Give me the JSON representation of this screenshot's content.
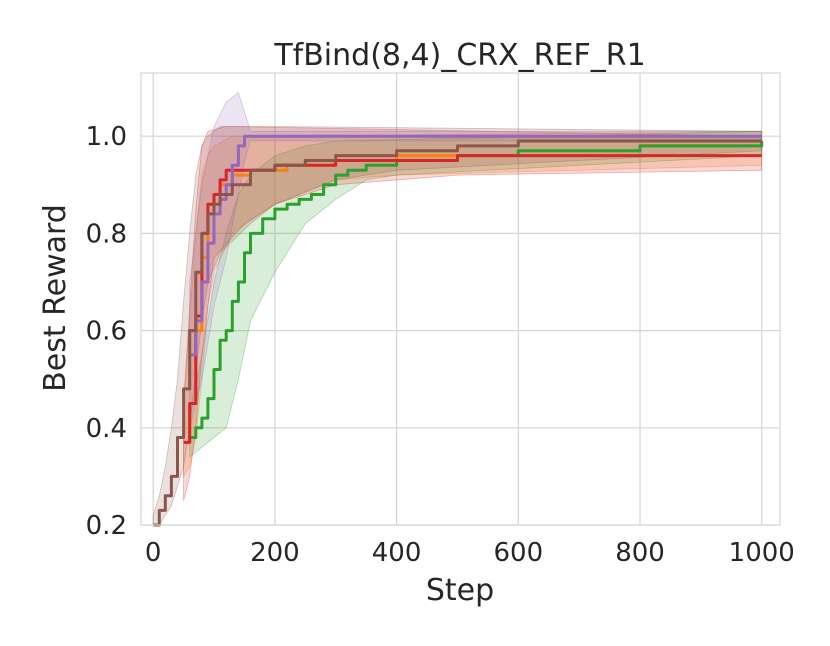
{
  "chart_data": {
    "type": "line",
    "title": "TfBind(8,4)_CRX_REF_R1",
    "xlabel": "Step",
    "ylabel": "Best Reward",
    "xlim": [
      -20,
      1030
    ],
    "ylim": [
      0.2,
      1.13
    ],
    "xticks": [
      0,
      200,
      400,
      600,
      800,
      1000
    ],
    "yticks": [
      0.2,
      0.4,
      0.6,
      0.8,
      1.0
    ],
    "xtick_labels": [
      "0",
      "200",
      "400",
      "600",
      "800",
      "1000"
    ],
    "ytick_labels": [
      "0.2",
      "0.4",
      "0.6",
      "0.8",
      "1.0"
    ],
    "grid": true,
    "legend": "none",
    "series": [
      {
        "color": "#ff7f0e",
        "step": true,
        "points": [
          [
            50,
            0.37
          ],
          [
            60,
            0.45
          ],
          [
            70,
            0.6
          ],
          [
            80,
            0.75
          ],
          [
            90,
            0.84
          ],
          [
            100,
            0.88
          ],
          [
            110,
            0.9
          ],
          [
            130,
            0.92
          ],
          [
            160,
            0.93
          ],
          [
            220,
            0.94
          ],
          [
            300,
            0.95
          ],
          [
            400,
            0.96
          ],
          [
            600,
            0.97
          ],
          [
            800,
            0.98
          ],
          [
            1000,
            0.98
          ]
        ],
        "upper": [
          [
            50,
            0.45
          ],
          [
            60,
            0.62
          ],
          [
            70,
            0.8
          ],
          [
            80,
            0.92
          ],
          [
            90,
            0.96
          ],
          [
            100,
            0.98
          ],
          [
            130,
            1.0
          ],
          [
            200,
            1.0
          ],
          [
            1000,
            1.01
          ]
        ],
        "lower": [
          [
            50,
            0.3
          ],
          [
            60,
            0.32
          ],
          [
            70,
            0.38
          ],
          [
            80,
            0.5
          ],
          [
            90,
            0.65
          ],
          [
            100,
            0.72
          ],
          [
            130,
            0.8
          ],
          [
            200,
            0.86
          ],
          [
            300,
            0.91
          ],
          [
            400,
            0.92
          ],
          [
            1000,
            0.94
          ]
        ]
      },
      {
        "color": "#2ca02c",
        "step": true,
        "points": [
          [
            60,
            0.38
          ],
          [
            70,
            0.4
          ],
          [
            80,
            0.42
          ],
          [
            90,
            0.46
          ],
          [
            100,
            0.52
          ],
          [
            110,
            0.58
          ],
          [
            120,
            0.6
          ],
          [
            130,
            0.66
          ],
          [
            140,
            0.7
          ],
          [
            150,
            0.76
          ],
          [
            160,
            0.8
          ],
          [
            180,
            0.83
          ],
          [
            200,
            0.85
          ],
          [
            220,
            0.86
          ],
          [
            240,
            0.87
          ],
          [
            260,
            0.88
          ],
          [
            280,
            0.9
          ],
          [
            300,
            0.92
          ],
          [
            320,
            0.93
          ],
          [
            350,
            0.94
          ],
          [
            400,
            0.95
          ],
          [
            500,
            0.96
          ],
          [
            600,
            0.97
          ],
          [
            800,
            0.98
          ],
          [
            1000,
            0.99
          ]
        ],
        "upper": [
          [
            60,
            0.42
          ],
          [
            80,
            0.55
          ],
          [
            100,
            0.7
          ],
          [
            120,
            0.8
          ],
          [
            140,
            0.88
          ],
          [
            160,
            0.92
          ],
          [
            200,
            0.96
          ],
          [
            250,
            0.98
          ],
          [
            300,
            0.99
          ],
          [
            1000,
            1.01
          ]
        ],
        "lower": [
          [
            60,
            0.34
          ],
          [
            80,
            0.36
          ],
          [
            100,
            0.38
          ],
          [
            120,
            0.4
          ],
          [
            140,
            0.5
          ],
          [
            160,
            0.62
          ],
          [
            200,
            0.72
          ],
          [
            250,
            0.82
          ],
          [
            300,
            0.87
          ],
          [
            350,
            0.91
          ],
          [
            400,
            0.92
          ],
          [
            1000,
            0.96
          ]
        ]
      },
      {
        "color": "#d62728",
        "step": true,
        "points": [
          [
            50,
            0.37
          ],
          [
            60,
            0.45
          ],
          [
            70,
            0.63
          ],
          [
            80,
            0.8
          ],
          [
            90,
            0.86
          ],
          [
            100,
            0.88
          ],
          [
            110,
            0.91
          ],
          [
            120,
            0.93
          ],
          [
            200,
            0.94
          ],
          [
            300,
            0.95
          ],
          [
            500,
            0.96
          ],
          [
            800,
            0.96
          ],
          [
            900,
            0.96
          ],
          [
            1000,
            0.96
          ]
        ],
        "upper": [
          [
            50,
            0.45
          ],
          [
            60,
            0.65
          ],
          [
            70,
            0.85
          ],
          [
            80,
            0.98
          ],
          [
            90,
            1.01
          ],
          [
            120,
            1.02
          ],
          [
            1000,
            1.0
          ]
        ],
        "lower": [
          [
            50,
            0.25
          ],
          [
            60,
            0.3
          ],
          [
            70,
            0.4
          ],
          [
            80,
            0.55
          ],
          [
            90,
            0.65
          ],
          [
            100,
            0.75
          ],
          [
            150,
            0.82
          ],
          [
            200,
            0.86
          ],
          [
            300,
            0.9
          ],
          [
            500,
            0.92
          ],
          [
            1000,
            0.93
          ]
        ]
      },
      {
        "color": "#9467bd",
        "step": true,
        "points": [
          [
            60,
            0.55
          ],
          [
            70,
            0.62
          ],
          [
            80,
            0.7
          ],
          [
            90,
            0.78
          ],
          [
            100,
            0.84
          ],
          [
            110,
            0.87
          ],
          [
            120,
            0.9
          ],
          [
            130,
            0.94
          ],
          [
            140,
            0.98
          ],
          [
            150,
            1.0
          ],
          [
            1000,
            1.0
          ]
        ],
        "upper": [
          [
            60,
            0.7
          ],
          [
            80,
            0.9
          ],
          [
            100,
            1.02
          ],
          [
            120,
            1.07
          ],
          [
            140,
            1.09
          ],
          [
            150,
            1.05
          ],
          [
            160,
            1.01
          ],
          [
            1000,
            1.01
          ]
        ],
        "lower": [
          [
            60,
            0.4
          ],
          [
            80,
            0.5
          ],
          [
            100,
            0.65
          ],
          [
            120,
            0.75
          ],
          [
            140,
            0.88
          ],
          [
            150,
            0.95
          ],
          [
            160,
            0.99
          ],
          [
            1000,
            0.99
          ]
        ]
      },
      {
        "color": "#8c564b",
        "step": true,
        "points": [
          [
            0,
            0.2
          ],
          [
            10,
            0.23
          ],
          [
            20,
            0.26
          ],
          [
            30,
            0.3
          ],
          [
            40,
            0.38
          ],
          [
            50,
            0.48
          ],
          [
            60,
            0.6
          ],
          [
            70,
            0.72
          ],
          [
            80,
            0.8
          ],
          [
            90,
            0.84
          ],
          [
            100,
            0.86
          ],
          [
            110,
            0.88
          ],
          [
            130,
            0.9
          ],
          [
            160,
            0.93
          ],
          [
            200,
            0.94
          ],
          [
            250,
            0.95
          ],
          [
            300,
            0.96
          ],
          [
            400,
            0.97
          ],
          [
            500,
            0.98
          ],
          [
            600,
            0.99
          ],
          [
            700,
            0.99
          ],
          [
            800,
            0.99
          ],
          [
            1000,
            0.99
          ]
        ],
        "upper": [
          [
            0,
            0.22
          ],
          [
            10,
            0.26
          ],
          [
            20,
            0.32
          ],
          [
            30,
            0.4
          ],
          [
            40,
            0.5
          ],
          [
            50,
            0.66
          ],
          [
            60,
            0.8
          ],
          [
            70,
            0.92
          ],
          [
            80,
            0.98
          ],
          [
            90,
            1.0
          ],
          [
            110,
            1.02
          ],
          [
            200,
            1.02
          ],
          [
            1000,
            1.01
          ]
        ],
        "lower": [
          [
            0,
            0.18
          ],
          [
            10,
            0.2
          ],
          [
            20,
            0.22
          ],
          [
            30,
            0.24
          ],
          [
            40,
            0.28
          ],
          [
            50,
            0.32
          ],
          [
            60,
            0.4
          ],
          [
            70,
            0.52
          ],
          [
            80,
            0.62
          ],
          [
            90,
            0.7
          ],
          [
            110,
            0.76
          ],
          [
            160,
            0.82
          ],
          [
            200,
            0.86
          ],
          [
            300,
            0.91
          ],
          [
            400,
            0.93
          ],
          [
            1000,
            0.97
          ]
        ]
      }
    ]
  }
}
